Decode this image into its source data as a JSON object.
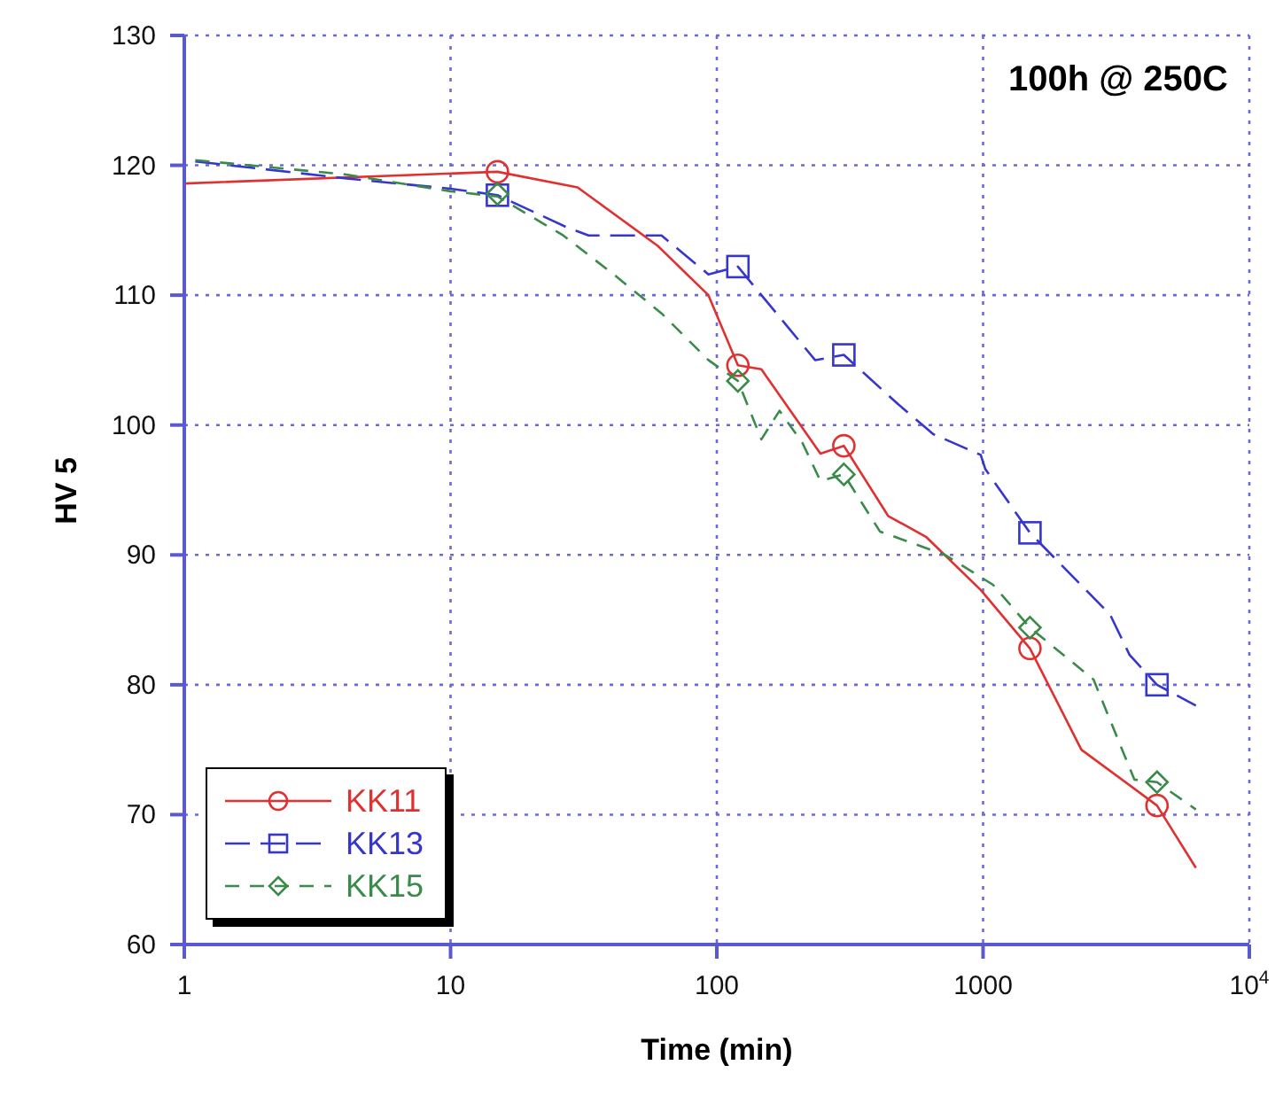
{
  "chart_data": {
    "type": "line",
    "xlabel": "Time (min)",
    "ylabel": "HV 5",
    "annotations": [
      "100h @ 250C"
    ],
    "log": "x",
    "xlim": [
      1,
      10000
    ],
    "xticks": [
      1,
      10,
      100,
      1000,
      {
        "value": 10000,
        "label": "10$^{4}$"
      }
    ],
    "ylim": [
      60,
      130
    ],
    "yticks": [
      60,
      70,
      80,
      90,
      100,
      110,
      120,
      130
    ],
    "grid": true,
    "legend": "bottom left",
    "series": [
      {
        "type": "line",
        "color": "#e03030",
        "line_style": "solid",
        "x": [
          1,
          15,
          30,
          60,
          93,
          120,
          147,
          245,
          300,
          440,
          610,
          980,
          1500,
          2340,
          4500,
          6300
        ],
        "values": [
          118.6,
          119.5,
          118.3,
          113.8,
          110,
          104.6,
          104.3,
          97.8,
          98.4,
          93,
          91.4,
          87.3,
          82.8,
          75,
          70.7,
          65.9
        ]
      },
      {
        "type": "line",
        "color": "#3535d0",
        "line_style": "dashed",
        "x": [
          1.1,
          4,
          10,
          15,
          27.5,
          33,
          62,
          93,
          120,
          234,
          300,
          480,
          650,
          980,
          1020,
          1500,
          3000,
          3550,
          4500,
          6300
        ],
        "values": [
          120.3,
          119,
          118.2,
          117.7,
          115.2,
          114.6,
          114.6,
          111.6,
          112.2,
          105,
          105.4,
          101.6,
          99.3,
          97.7,
          96.6,
          91.7,
          85.4,
          82.3,
          80,
          78.4
        ]
      },
      {
        "type": "line",
        "color": "#3a8a4a",
        "line_style": "dotted",
        "x": [
          1.1,
          4,
          10,
          15,
          26.5,
          41,
          62,
          93,
          120,
          147,
          172,
          210,
          245,
          300,
          410,
          720,
          1090,
          1500,
          2600,
          3700,
          4500,
          6300
        ],
        "values": [
          120.4,
          119.3,
          118,
          117.6,
          114.6,
          111.6,
          108.6,
          105,
          103.4,
          98.9,
          101.1,
          98.6,
          95.7,
          96.2,
          91.8,
          90,
          87.7,
          84.4,
          80.4,
          72.7,
          72.5,
          70.4
        ]
      },
      {
        "type": "scatter",
        "name": "KK11",
        "color": "#e03030",
        "marker": "circle",
        "line_style": "solid",
        "x": [
          15,
          120,
          300,
          1500,
          4500
        ],
        "values": [
          119.5,
          104.6,
          98.4,
          82.8,
          70.7
        ]
      },
      {
        "type": "scatter",
        "name": "KK13",
        "color": "#3535d0",
        "marker": "square",
        "line_style": "dashed",
        "x": [
          15,
          120,
          300,
          1500,
          4500
        ],
        "values": [
          117.7,
          112.2,
          105.4,
          91.7,
          80
        ]
      },
      {
        "type": "scatter",
        "name": "KK15",
        "color": "#3a8a4a",
        "marker": "diamond",
        "line_style": "dotted",
        "x": [
          15,
          120,
          300,
          1500,
          4500
        ],
        "values": [
          117.8,
          103.4,
          96.2,
          84.4,
          72.5
        ]
      }
    ]
  }
}
